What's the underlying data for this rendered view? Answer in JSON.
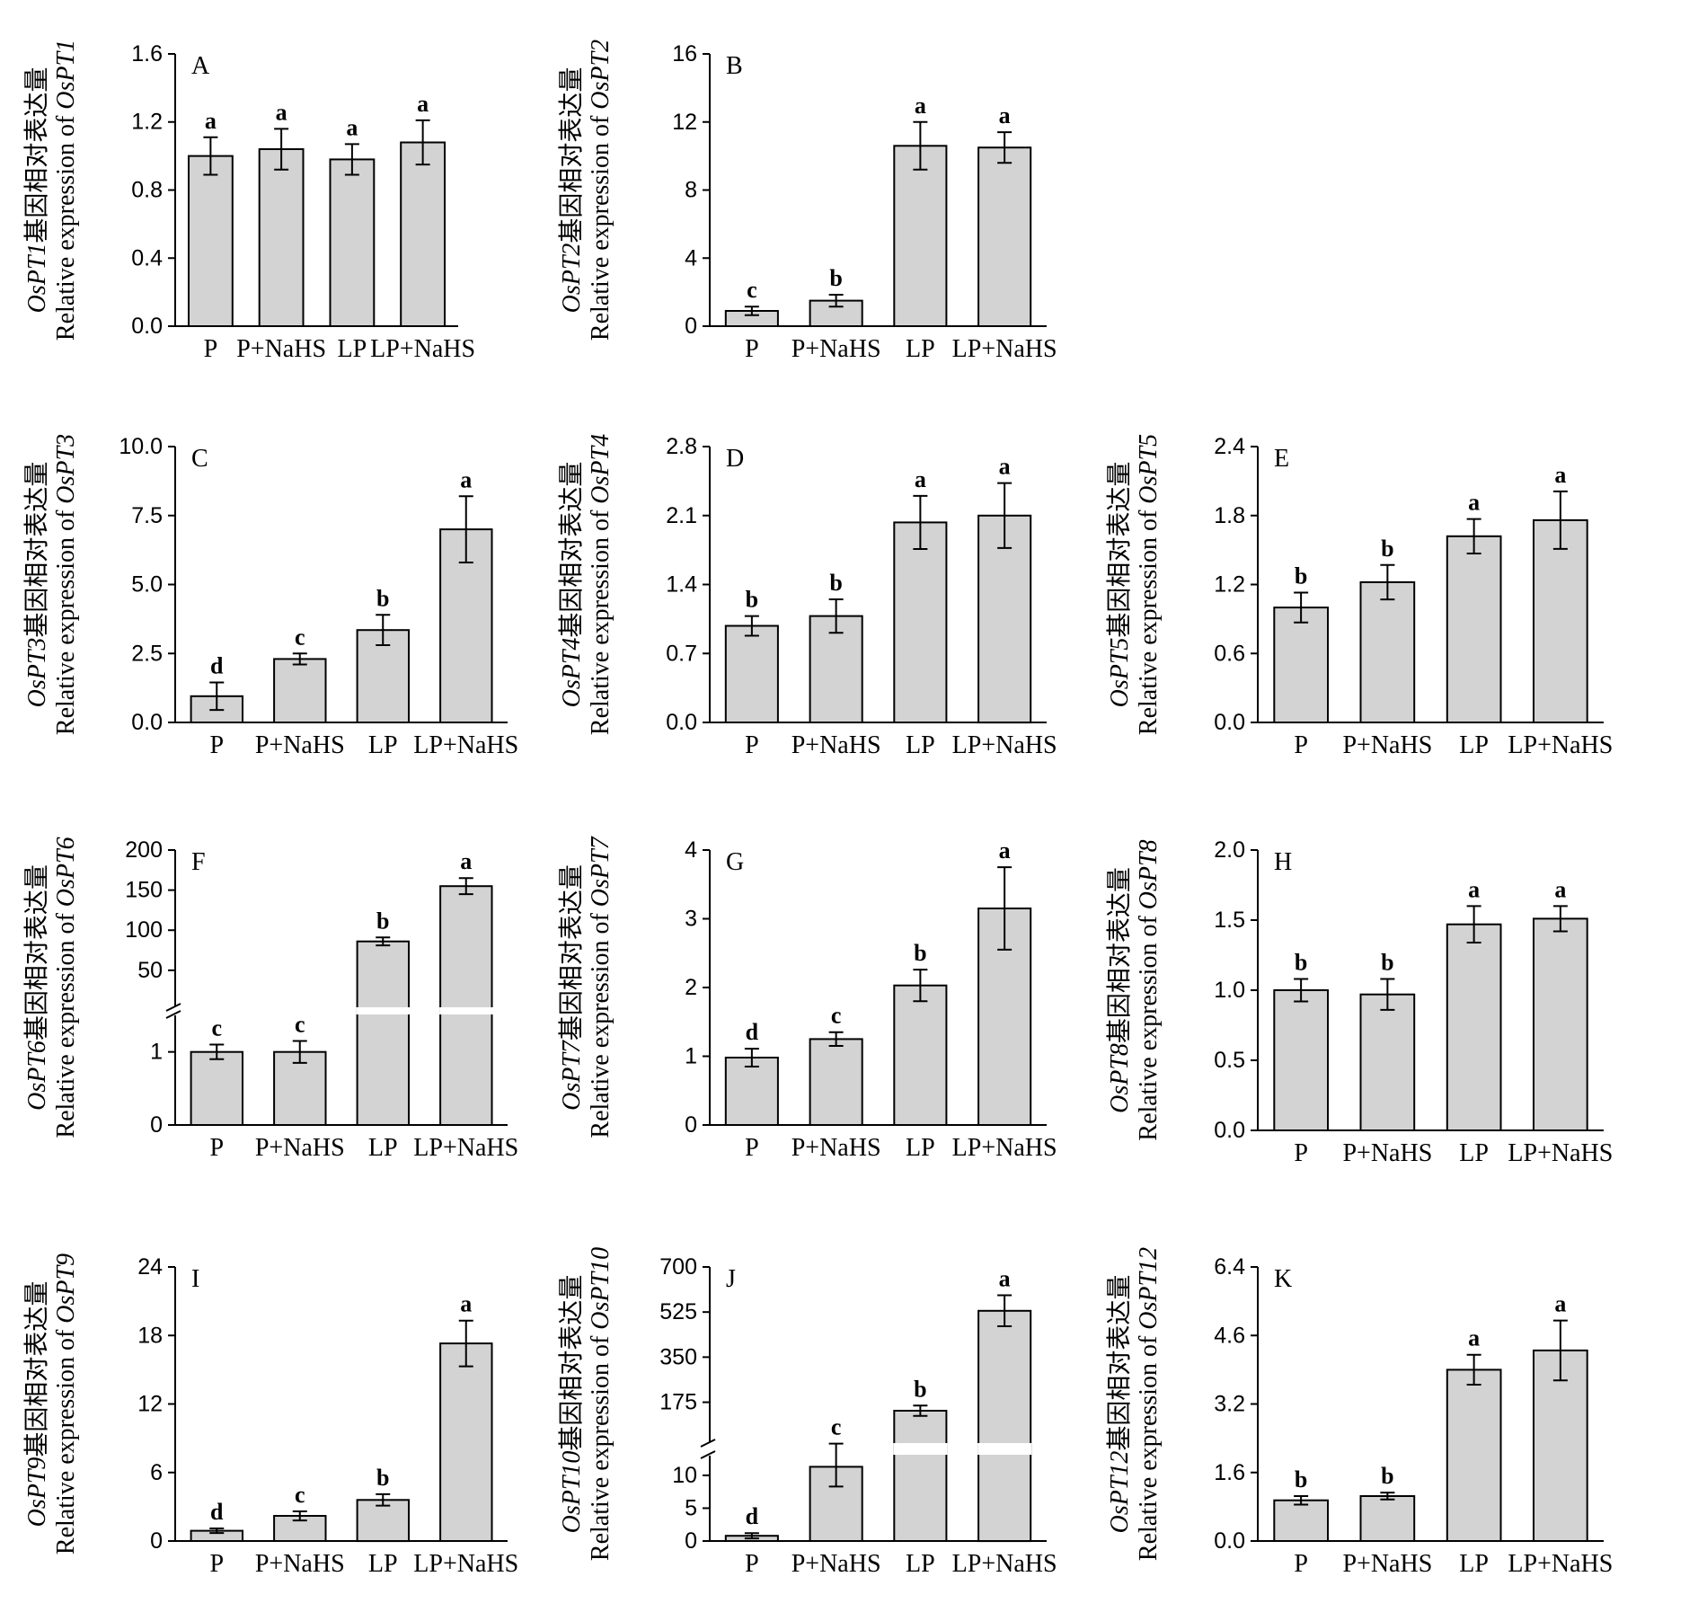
{
  "figure": {
    "ylabel_prefix_cn": "基因相对表达量",
    "ylabel_en": "Relative expression of ",
    "bar_color": "#d3d3d3"
  },
  "chart_data": [
    {
      "type": "bar",
      "panel": "A",
      "gene": "OsPT1",
      "categories": [
        "P",
        "P+NaHS",
        "LP",
        "LP+NaHS"
      ],
      "values": [
        1.0,
        1.04,
        0.98,
        1.08
      ],
      "errors": [
        0.11,
        0.12,
        0.09,
        0.13
      ],
      "significance": [
        "a",
        "a",
        "a",
        "a"
      ],
      "ylim": [
        0,
        1.6
      ],
      "yticks": [
        "0.0",
        "0.4",
        "0.8",
        "1.2",
        "1.6"
      ]
    },
    {
      "type": "bar",
      "panel": "B",
      "gene": "OsPT2",
      "categories": [
        "P",
        "P+NaHS",
        "LP",
        "LP+NaHS"
      ],
      "values": [
        0.9,
        1.5,
        10.6,
        10.5
      ],
      "errors": [
        0.25,
        0.35,
        1.4,
        0.9
      ],
      "significance": [
        "c",
        "b",
        "a",
        "a"
      ],
      "ylim": [
        0,
        16
      ],
      "yticks": [
        "0",
        "4",
        "8",
        "12",
        "16"
      ]
    },
    {
      "type": "bar",
      "panel": "C",
      "gene": "OsPT3",
      "categories": [
        "P",
        "P+NaHS",
        "LP",
        "LP+NaHS"
      ],
      "values": [
        0.95,
        2.3,
        3.35,
        7.0
      ],
      "errors": [
        0.5,
        0.2,
        0.55,
        1.2
      ],
      "significance": [
        "d",
        "c",
        "b",
        "a"
      ],
      "ylim": [
        0,
        10
      ],
      "yticks": [
        "0.0",
        "2.5",
        "5.0",
        "7.5",
        "10.0"
      ]
    },
    {
      "type": "bar",
      "panel": "D",
      "gene": "OsPT4",
      "categories": [
        "P",
        "P+NaHS",
        "LP",
        "LP+NaHS"
      ],
      "values": [
        0.98,
        1.08,
        2.03,
        2.1
      ],
      "errors": [
        0.1,
        0.17,
        0.27,
        0.33
      ],
      "significance": [
        "b",
        "b",
        "a",
        "a"
      ],
      "ylim": [
        0,
        2.8
      ],
      "yticks": [
        "0.0",
        "0.7",
        "1.4",
        "2.1",
        "2.8"
      ]
    },
    {
      "type": "bar",
      "panel": "E",
      "gene": "OsPT5",
      "categories": [
        "P",
        "P+NaHS",
        "LP",
        "LP+NaHS"
      ],
      "values": [
        1.0,
        1.22,
        1.62,
        1.76
      ],
      "errors": [
        0.13,
        0.15,
        0.15,
        0.25
      ],
      "significance": [
        "b",
        "b",
        "a",
        "a"
      ],
      "ylim": [
        0,
        2.4
      ],
      "yticks": [
        "0.0",
        "0.6",
        "1.2",
        "1.8",
        "2.4"
      ]
    },
    {
      "type": "bar",
      "panel": "F",
      "gene": "OsPT6",
      "categories": [
        "P",
        "P+NaHS",
        "LP",
        "LP+NaHS"
      ],
      "values": [
        1.0,
        1.0,
        86,
        155
      ],
      "errors": [
        0.1,
        0.15,
        5,
        10
      ],
      "significance": [
        "c",
        "c",
        "b",
        "a"
      ],
      "ylim": [
        0,
        200
      ],
      "axis_break": [
        1.5,
        5
      ],
      "yticks_low": [
        "0",
        "1"
      ],
      "yticks_high": [
        "50",
        "100",
        "150",
        "200"
      ]
    },
    {
      "type": "bar",
      "panel": "G",
      "gene": "OsPT7",
      "categories": [
        "P",
        "P+NaHS",
        "LP",
        "LP+NaHS"
      ],
      "values": [
        0.98,
        1.25,
        2.03,
        3.15
      ],
      "errors": [
        0.13,
        0.1,
        0.23,
        0.6
      ],
      "significance": [
        "d",
        "c",
        "b",
        "a"
      ],
      "ylim": [
        0,
        4
      ],
      "yticks": [
        "0",
        "1",
        "2",
        "3",
        "4"
      ]
    },
    {
      "type": "bar",
      "panel": "H",
      "gene": "OsPT8",
      "categories": [
        "P",
        "P+NaHS",
        "LP",
        "LP+NaHS"
      ],
      "values": [
        1.0,
        0.97,
        1.47,
        1.51
      ],
      "errors": [
        0.08,
        0.11,
        0.13,
        0.09
      ],
      "significance": [
        "b",
        "b",
        "a",
        "a"
      ],
      "ylim": [
        0,
        2.0
      ],
      "yticks": [
        "0.0",
        "0.5",
        "1.0",
        "1.5",
        "2.0"
      ]
    },
    {
      "type": "bar",
      "panel": "I",
      "gene": "OsPT9",
      "categories": [
        "P",
        "P+NaHS",
        "LP",
        "LP+NaHS"
      ],
      "values": [
        0.9,
        2.2,
        3.6,
        17.3
      ],
      "errors": [
        0.2,
        0.4,
        0.5,
        2.0
      ],
      "significance": [
        "d",
        "c",
        "b",
        "a"
      ],
      "ylim": [
        0,
        24
      ],
      "yticks": [
        "0",
        "6",
        "12",
        "18",
        "24"
      ]
    },
    {
      "type": "bar",
      "panel": "J",
      "gene": "OsPT10",
      "categories": [
        "P",
        "P+NaHS",
        "LP",
        "LP+NaHS"
      ],
      "values": [
        0.8,
        11.3,
        142,
        530
      ],
      "errors": [
        0.4,
        3.0,
        20,
        60
      ],
      "significance": [
        "d",
        "c",
        "b",
        "a"
      ],
      "ylim": [
        0,
        700
      ],
      "axis_break": [
        13,
        20
      ],
      "yticks_low": [
        "0",
        "5",
        "10"
      ],
      "yticks_high": [
        "175",
        "350",
        "525",
        "700"
      ]
    },
    {
      "type": "bar",
      "panel": "K",
      "gene": "OsPT12",
      "categories": [
        "P",
        "P+NaHS",
        "LP",
        "LP+NaHS"
      ],
      "values": [
        0.95,
        1.05,
        4.0,
        4.45
      ],
      "errors": [
        0.1,
        0.08,
        0.35,
        0.7
      ],
      "significance": [
        "b",
        "b",
        "a",
        "a"
      ],
      "ylim": [
        0,
        6.4
      ],
      "yticks": [
        "0.0",
        "1.6",
        "3.2",
        "4.6",
        "6.4"
      ]
    }
  ]
}
